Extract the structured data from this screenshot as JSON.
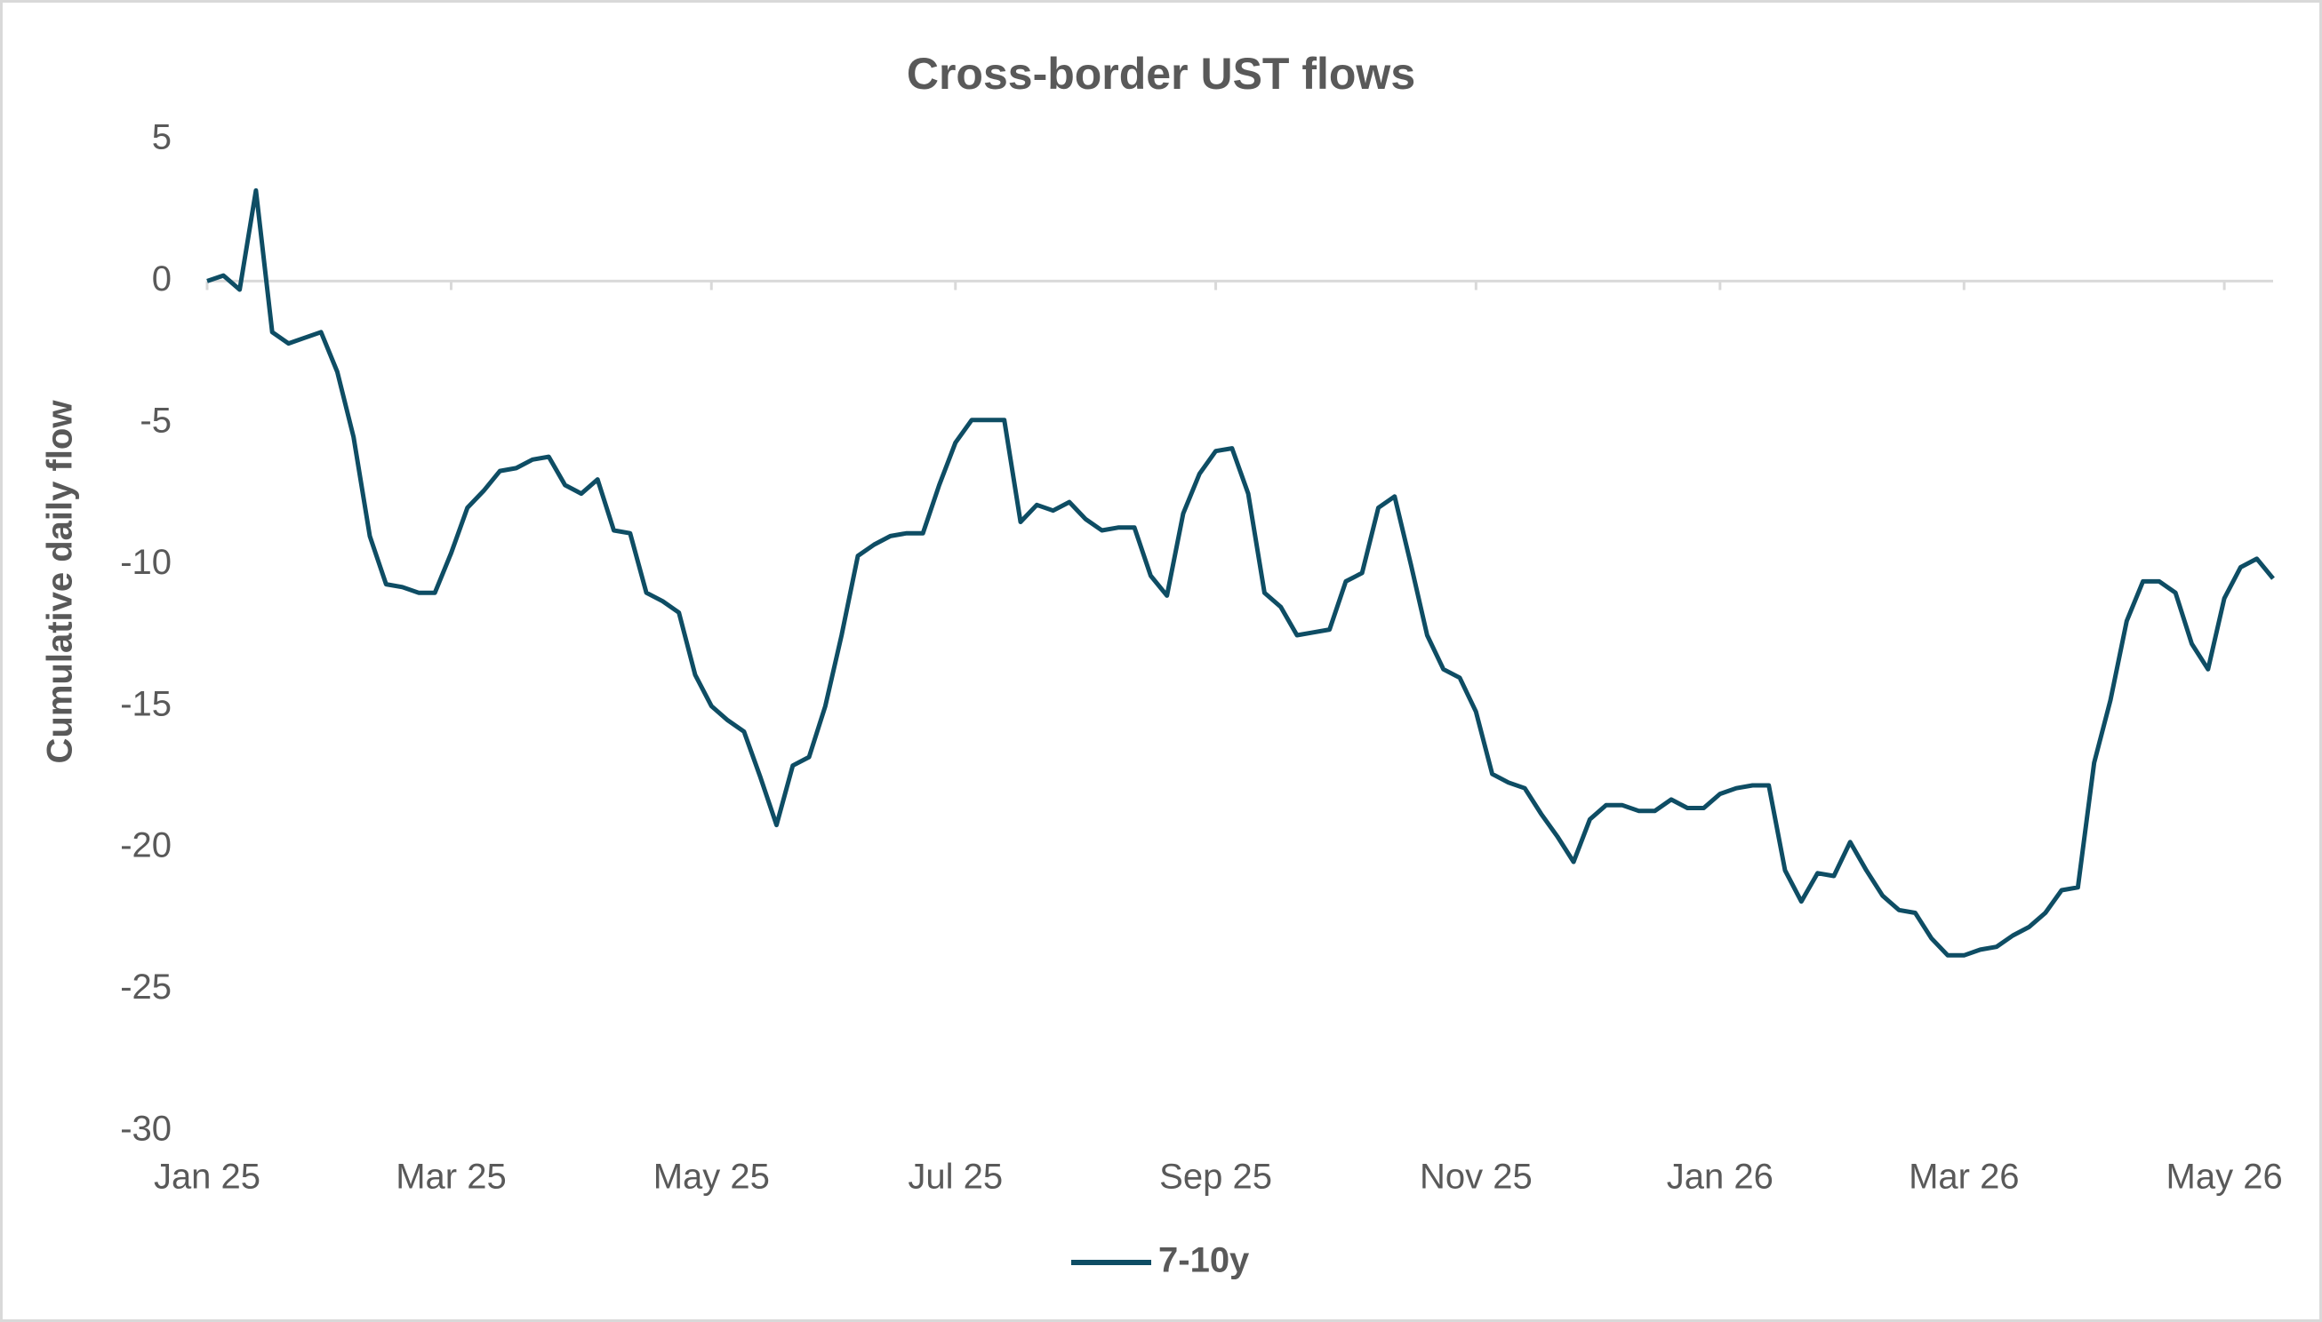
{
  "chart_data": {
    "type": "line",
    "title": "Cross-border UST flows",
    "y_label": "Cumulative daily flow",
    "categories": [
      "Jan 25",
      null,
      null,
      null,
      null,
      null,
      null,
      null,
      null,
      null,
      null,
      null,
      null,
      null,
      null,
      "Mar 25",
      null,
      null,
      null,
      null,
      null,
      null,
      null,
      null,
      null,
      null,
      null,
      null,
      null,
      null,
      null,
      "May 25",
      null,
      null,
      null,
      null,
      null,
      null,
      null,
      null,
      null,
      null,
      null,
      null,
      null,
      null,
      "Jul 25",
      null,
      null,
      null,
      null,
      null,
      null,
      null,
      null,
      null,
      null,
      null,
      null,
      null,
      null,
      null,
      "Sep 25",
      null,
      null,
      null,
      null,
      null,
      null,
      null,
      null,
      null,
      null,
      null,
      null,
      null,
      null,
      null,
      "Nov 25",
      null,
      null,
      null,
      null,
      null,
      null,
      null,
      null,
      null,
      null,
      null,
      null,
      null,
      null,
      "Jan 26",
      null,
      null,
      null,
      null,
      null,
      null,
      null,
      null,
      null,
      null,
      null,
      null,
      null,
      null,
      "Mar 26",
      null,
      null,
      null,
      null,
      null,
      null,
      null,
      null,
      null,
      null,
      null,
      null,
      null,
      null,
      null,
      "May 26",
      null,
      null,
      null
    ],
    "series": [
      {
        "name": "7-10y",
        "color": "#0e4d64",
        "values": [
          0,
          0.2,
          -0.3,
          3.2,
          -1.8,
          -2.2,
          -2.0,
          -1.8,
          -3.2,
          -5.5,
          -9.0,
          -10.7,
          -10.8,
          -11.0,
          -11.0,
          -9.6,
          -8.0,
          -7.4,
          -6.7,
          -6.6,
          -6.3,
          -6.2,
          -7.2,
          -7.5,
          -7.0,
          -8.8,
          -8.9,
          -11.0,
          -11.3,
          -11.7,
          -13.9,
          -15.0,
          -15.5,
          -15.9,
          -17.5,
          -19.2,
          -17.1,
          -16.8,
          -15.0,
          -12.5,
          -9.7,
          -9.3,
          -9.0,
          -8.9,
          -8.9,
          -7.2,
          -5.7,
          -4.9,
          -4.9,
          -4.9,
          -8.5,
          -7.9,
          -8.1,
          -7.8,
          -8.4,
          -8.8,
          -8.7,
          -8.7,
          -10.4,
          -11.1,
          -8.2,
          -6.8,
          -6.0,
          -5.9,
          -7.5,
          -11.0,
          -11.5,
          -12.5,
          -12.4,
          -12.3,
          -10.6,
          -10.3,
          -8.0,
          -7.6,
          -10.0,
          -12.5,
          -13.7,
          -14.0,
          -15.2,
          -17.4,
          -17.7,
          -17.9,
          -18.8,
          -19.6,
          -20.5,
          -19.0,
          -18.5,
          -18.5,
          -18.7,
          -18.7,
          -18.3,
          -18.6,
          -18.6,
          -18.1,
          -17.9,
          -17.8,
          -17.8,
          -20.8,
          -21.9,
          -20.9,
          -21.0,
          -19.8,
          -20.8,
          -21.7,
          -22.2,
          -22.3,
          -23.2,
          -23.8,
          -23.8,
          -23.6,
          -23.5,
          -23.1,
          -22.8,
          -22.3,
          -21.5,
          -21.4,
          -17.0,
          -14.8,
          -12.0,
          -10.6,
          -10.6,
          -11.0,
          -12.8,
          -13.7,
          -11.2,
          -10.1,
          -9.8,
          -10.5
        ]
      }
    ],
    "ylim": [
      -30,
      5
    ],
    "yticks": [
      -30,
      -25,
      -20,
      -15,
      -10,
      -5,
      0,
      5
    ],
    "grid": false,
    "legend": "bottom"
  }
}
